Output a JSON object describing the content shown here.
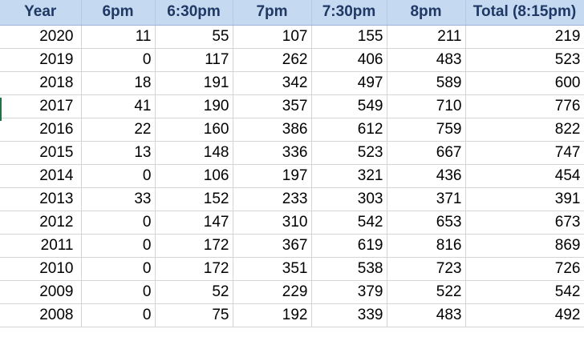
{
  "table": {
    "headers": [
      "Year",
      "6pm",
      "6:30pm",
      "7pm",
      "7:30pm",
      "8pm",
      "Total (8:15pm)"
    ],
    "rows": [
      [
        "2020",
        "11",
        "55",
        "107",
        "155",
        "211",
        "219"
      ],
      [
        "2019",
        "0",
        "117",
        "262",
        "406",
        "483",
        "523"
      ],
      [
        "2018",
        "18",
        "191",
        "342",
        "497",
        "589",
        "600"
      ],
      [
        "2017",
        "41",
        "190",
        "357",
        "549",
        "710",
        "776"
      ],
      [
        "2016",
        "22",
        "160",
        "386",
        "612",
        "759",
        "822"
      ],
      [
        "2015",
        "13",
        "148",
        "336",
        "523",
        "667",
        "747"
      ],
      [
        "2014",
        "0",
        "106",
        "197",
        "321",
        "436",
        "454"
      ],
      [
        "2013",
        "33",
        "152",
        "233",
        "303",
        "371",
        "391"
      ],
      [
        "2012",
        "0",
        "147",
        "310",
        "542",
        "653",
        "673"
      ],
      [
        "2011",
        "0",
        "172",
        "367",
        "619",
        "816",
        "869"
      ],
      [
        "2010",
        "0",
        "172",
        "351",
        "538",
        "723",
        "726"
      ],
      [
        "2009",
        "0",
        "52",
        "229",
        "379",
        "522",
        "542"
      ],
      [
        "2008",
        "0",
        "75",
        "192",
        "339",
        "483",
        "492"
      ]
    ]
  },
  "colors": {
    "header_bg": "#c5d9f1",
    "header_text": "#1f3864",
    "gridline": "#d4d4d4",
    "selection_marker": "#217346"
  }
}
